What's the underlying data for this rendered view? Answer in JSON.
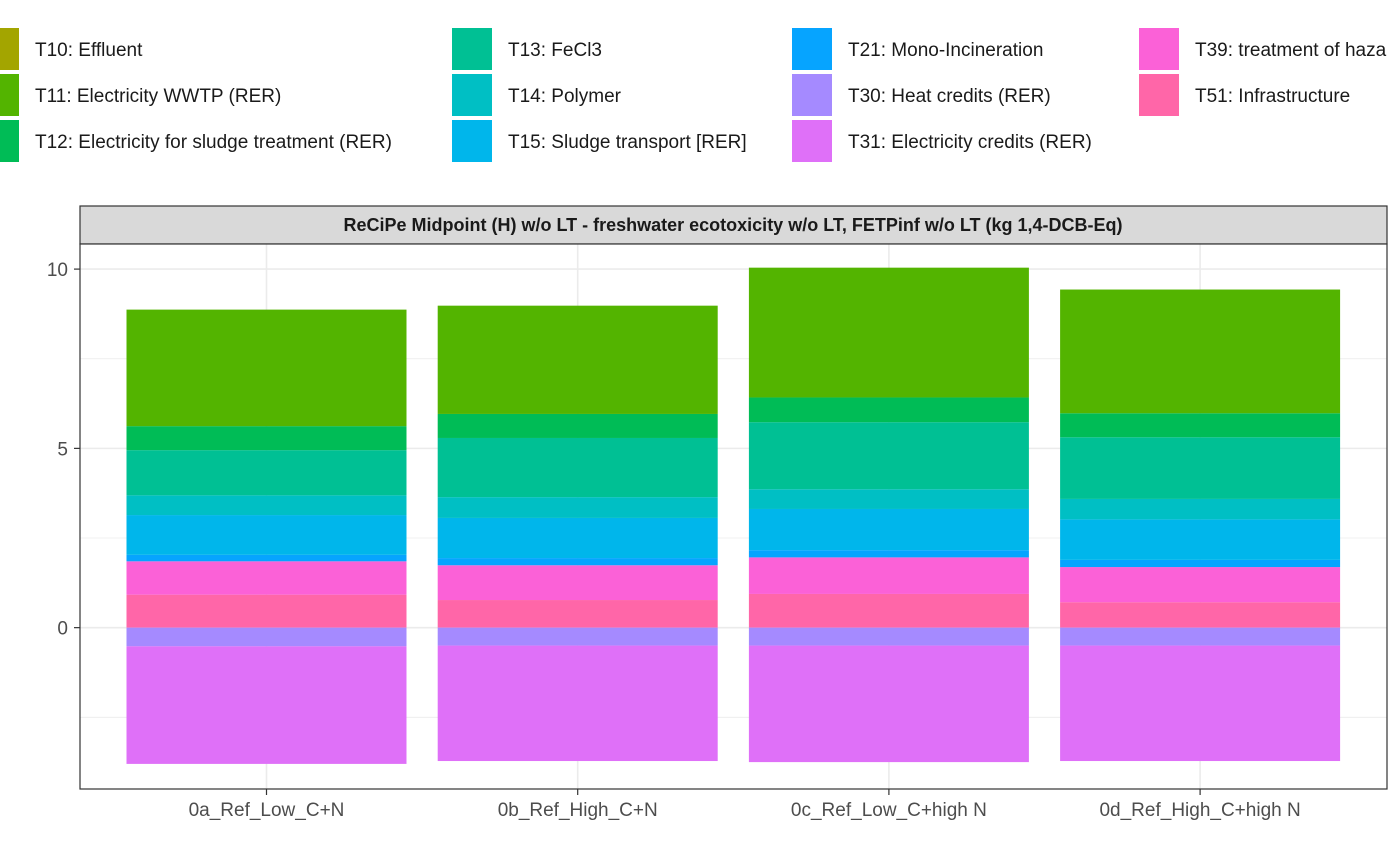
{
  "chart_data": {
    "type": "bar",
    "stacked": true,
    "title": "ReCiPe Midpoint (H) w/o LT - freshwater ecotoxicity w/o LT, FETPinf w/o LT (kg 1,4-DCB-Eq)",
    "xlabel": "",
    "ylabel": "",
    "ylim": [
      -4.5,
      10.7
    ],
    "yticks": [
      0,
      5,
      10
    ],
    "grid": true,
    "legend_position": "top",
    "categories": [
      "0a_Ref_Low_C+N",
      "0b_Ref_High_C+N",
      "0c_Ref_Low_C+high N",
      "0d_Ref_High_C+high N"
    ],
    "series": [
      {
        "name": "T10: Effluent",
        "color": "#a3a500",
        "values": [
          0,
          0,
          0,
          0
        ]
      },
      {
        "name": "T11: Electricity WWTP (RER)",
        "color": "#53b400",
        "values": [
          3.25,
          3.02,
          3.62,
          3.45
        ]
      },
      {
        "name": "T12: Electricity for sludge treatment (RER)",
        "color": "#00bc56",
        "values": [
          0.67,
          0.67,
          0.69,
          0.67
        ]
      },
      {
        "name": "T13: FeCl3",
        "color": "#00c094",
        "values": [
          1.26,
          1.65,
          1.87,
          1.72
        ]
      },
      {
        "name": "T14: Polymer",
        "color": "#00bfc4",
        "values": [
          0.55,
          0.58,
          0.55,
          0.57
        ]
      },
      {
        "name": "T15: Sludge transport [RER]",
        "color": "#00b6eb",
        "values": [
          1.11,
          1.12,
          1.15,
          1.13
        ]
      },
      {
        "name": "T21: Mono-Incineration",
        "color": "#06a4ff",
        "values": [
          0.18,
          0.2,
          0.2,
          0.2
        ]
      },
      {
        "name": "T30: Heat credits (RER)",
        "color": "#a58aff",
        "values": [
          -0.52,
          -0.5,
          -0.5,
          -0.5
        ]
      },
      {
        "name": "T31: Electricity credits (RER)",
        "color": "#df70f8",
        "values": [
          -3.28,
          -3.22,
          -3.25,
          -3.22
        ]
      },
      {
        "name": "T39: treatment of haza",
        "color": "#fb61d7",
        "values": [
          0.93,
          0.97,
          1.02,
          0.98
        ]
      },
      {
        "name": "T51: Infrastructure",
        "color": "#ff66a8",
        "values": [
          0.92,
          0.77,
          0.94,
          0.71
        ]
      }
    ]
  }
}
